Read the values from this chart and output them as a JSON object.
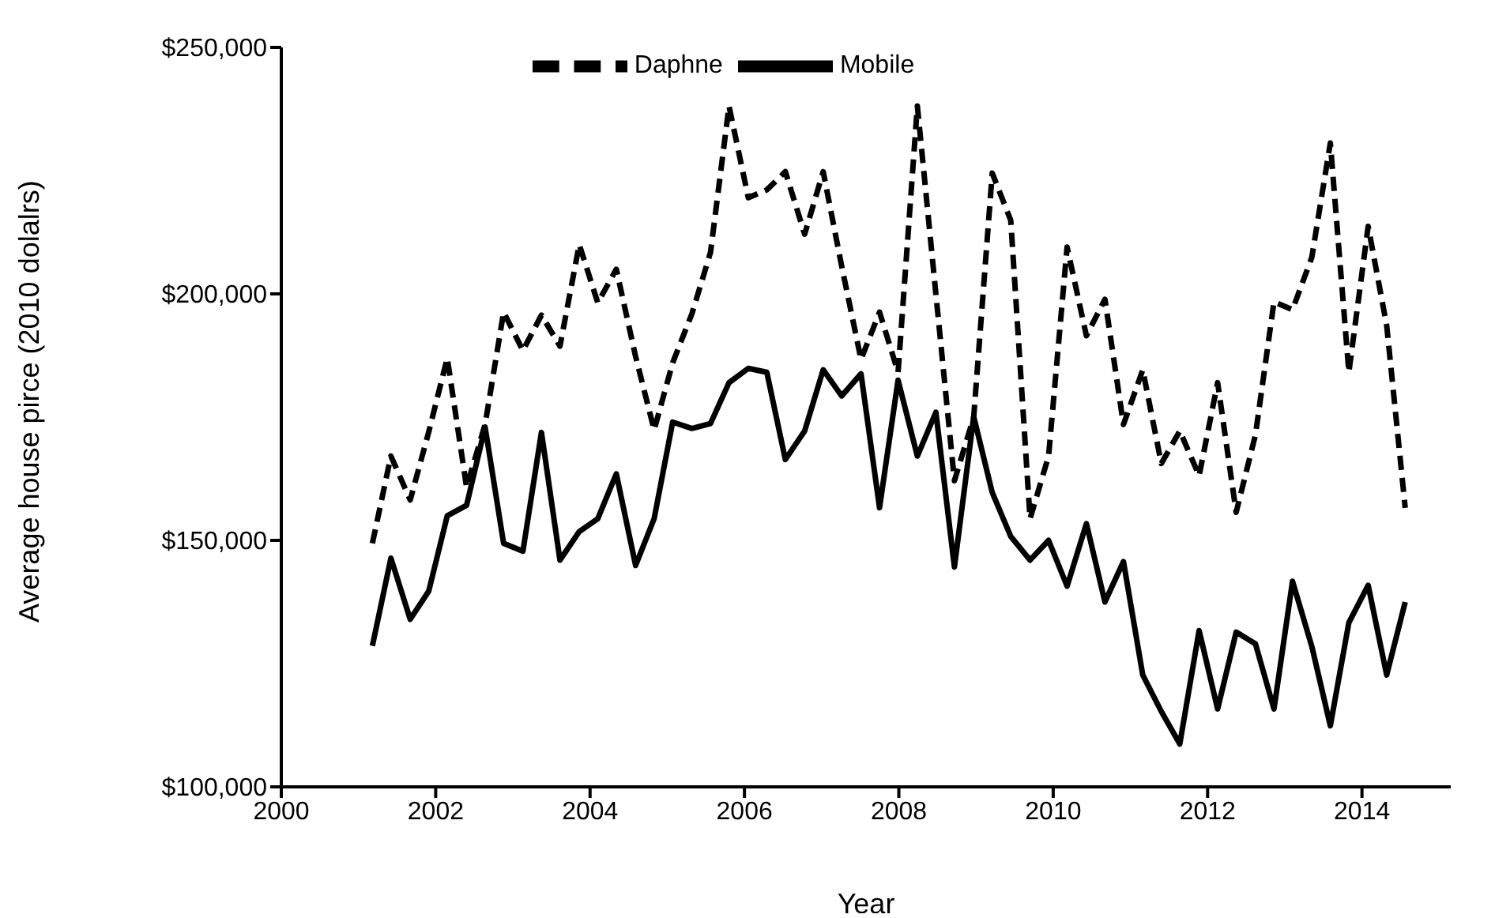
{
  "chart_data": {
    "type": "line",
    "xlabel": "Year",
    "ylabel": "Average house pirce (2010 dolalrs)",
    "x": [
      2001.18,
      2001.42,
      2001.67,
      2001.91,
      2002.15,
      2002.4,
      2002.64,
      2002.88,
      2003.13,
      2003.37,
      2003.61,
      2003.86,
      2004.1,
      2004.34,
      2004.59,
      2004.83,
      2005.07,
      2005.32,
      2005.56,
      2005.8,
      2006.05,
      2006.29,
      2006.53,
      2006.78,
      2007.02,
      2007.26,
      2007.51,
      2007.75,
      2007.99,
      2008.24,
      2008.48,
      2008.72,
      2008.97,
      2009.21,
      2009.45,
      2009.7,
      2009.94,
      2010.18,
      2010.43,
      2010.67,
      2010.91,
      2011.16,
      2011.4,
      2011.64,
      2011.89,
      2012.13,
      2012.37,
      2012.62,
      2012.86,
      2013.1,
      2013.35,
      2013.59,
      2013.83,
      2014.08,
      2014.32,
      2014.56
    ],
    "series": [
      {
        "name": "Daphne",
        "color": "#000000",
        "line_style": "dashed",
        "values": [
          149400,
          167100,
          158200,
          172000,
          187000,
          160800,
          173500,
          196300,
          188500,
          195700,
          189400,
          210000,
          198200,
          205000,
          187300,
          172400,
          186000,
          196000,
          208400,
          238100,
          219500,
          221100,
          224800,
          212100,
          224800,
          205600,
          186700,
          196300,
          184100,
          238100,
          200000,
          162100,
          175000,
          224500,
          214900,
          154400,
          167100,
          209500,
          191500,
          198900,
          173500,
          184600,
          165600,
          172200,
          163100,
          182000,
          155700,
          171400,
          198400,
          196800,
          207400,
          230600,
          184100,
          213700,
          193600,
          156600
        ]
      },
      {
        "name": "Mobile",
        "color": "#000000",
        "line_style": "solid",
        "values": [
          128600,
          146400,
          134000,
          139700,
          155000,
          157100,
          173000,
          149400,
          147800,
          171900,
          146000,
          151800,
          154400,
          163500,
          144900,
          154400,
          174000,
          172700,
          173700,
          182000,
          184900,
          184100,
          166400,
          172200,
          184600,
          179300,
          183800,
          156600,
          182500,
          167100,
          176000,
          144600,
          175100,
          159700,
          150800,
          146000,
          150000,
          140700,
          153400,
          137500,
          145700,
          122700,
          115300,
          108700,
          131700,
          115800,
          131400,
          129000,
          115800,
          141700,
          128500,
          112400,
          133300,
          140900,
          122700,
          137500
        ]
      }
    ],
    "xlim": [
      2000,
      2015.15
    ],
    "xticks": [
      2000,
      2002,
      2004,
      2006,
      2008,
      2010,
      2012,
      2014
    ],
    "ylim": [
      100000,
      250000
    ],
    "yticks": [
      {
        "value": 100000,
        "label": "$100,000"
      },
      {
        "value": 150000,
        "label": "$150,000"
      },
      {
        "value": 200000,
        "label": "$200,000"
      },
      {
        "value": 250000,
        "label": "$250,000"
      }
    ],
    "grid": false,
    "legend": "top",
    "marker": "none"
  }
}
